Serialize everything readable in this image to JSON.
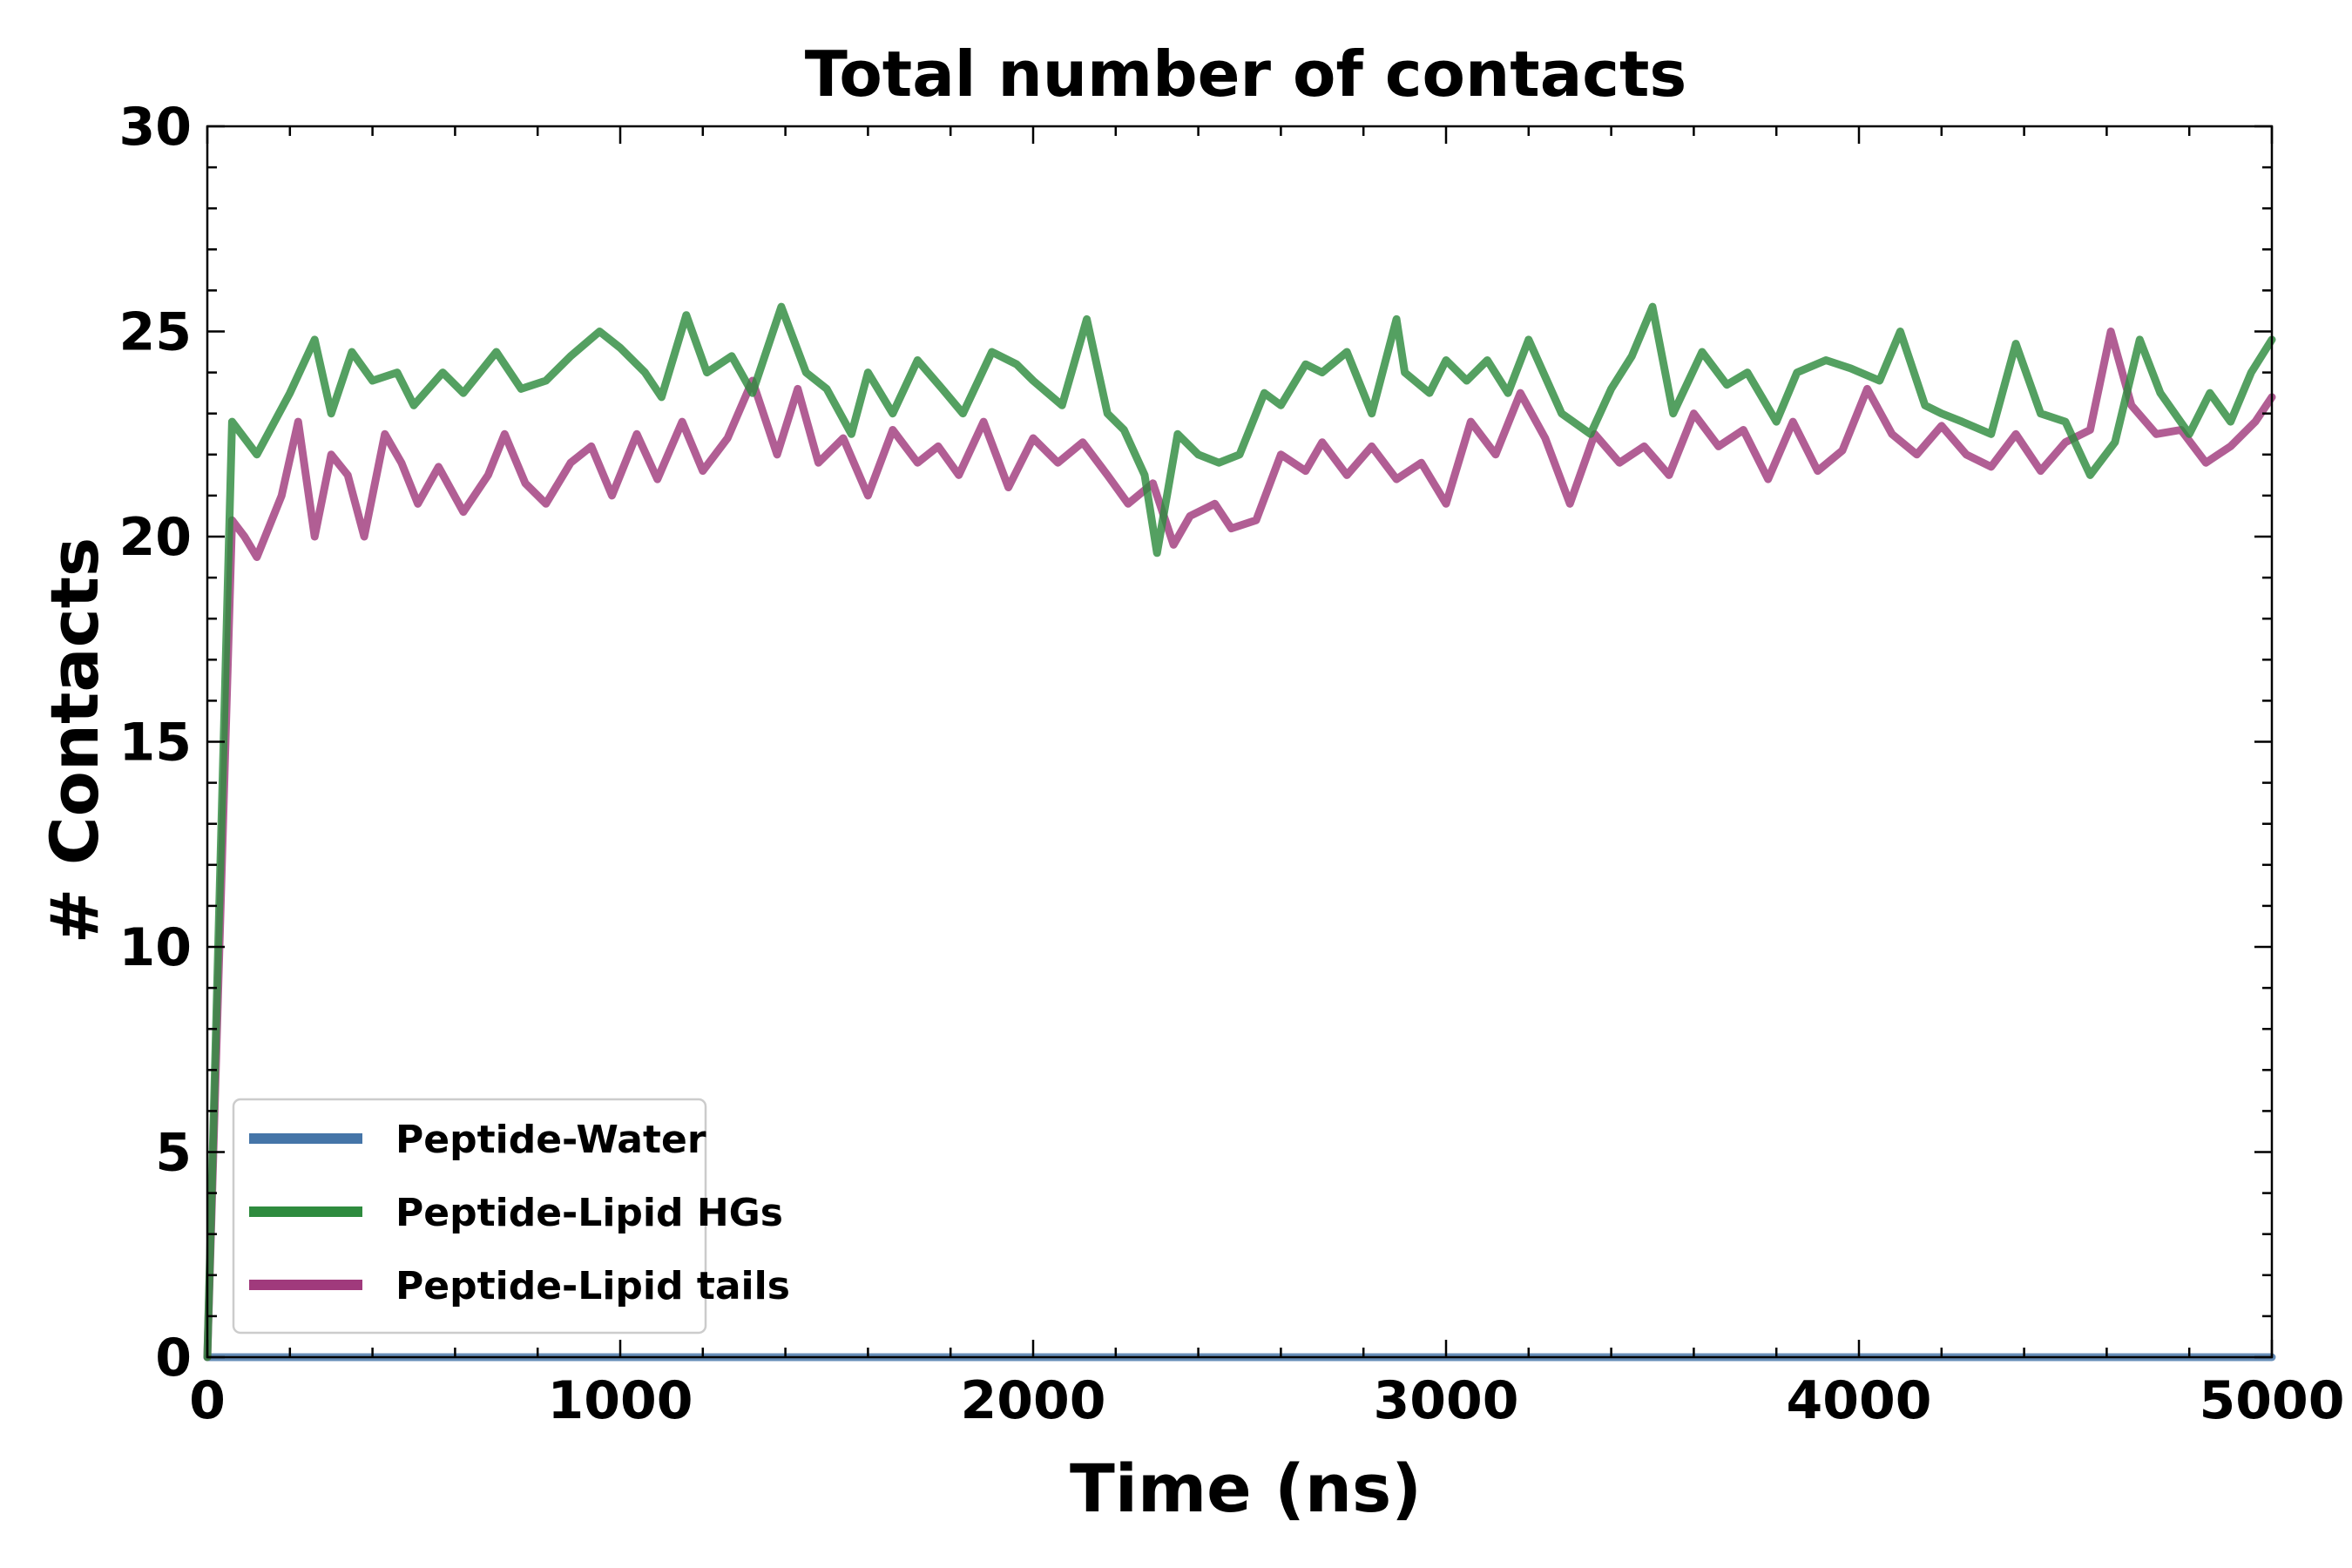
{
  "chart_data": {
    "type": "line",
    "title": "Total number of contacts",
    "xlabel": "Time (ns)",
    "ylabel": "# Contacts",
    "xlim": [
      0,
      5000
    ],
    "ylim": [
      0,
      30
    ],
    "xticks": [
      "0",
      "1000",
      "2000",
      "3000",
      "4000",
      "5000"
    ],
    "yticks": [
      "0",
      "5",
      "10",
      "15",
      "20",
      "25",
      "30"
    ],
    "grid": false,
    "legend_position": "lower-left",
    "series": [
      {
        "name": "Peptide-Water",
        "color": "#4575a8",
        "x": [
          0,
          5000
        ],
        "y": [
          0,
          0
        ]
      },
      {
        "name": "Peptide-Lipid HGs",
        "color": "#2e8b3e",
        "x": [
          0,
          60,
          120,
          200,
          260,
          300,
          350,
          400,
          460,
          500,
          570,
          620,
          700,
          760,
          820,
          880,
          950,
          1000,
          1060,
          1100,
          1160,
          1210,
          1270,
          1320,
          1390,
          1450,
          1500,
          1560,
          1600,
          1660,
          1720,
          1780,
          1830,
          1900,
          1960,
          2000,
          2070,
          2130,
          2180,
          2220,
          2270,
          2300,
          2350,
          2400,
          2450,
          2500,
          2560,
          2600,
          2660,
          2700,
          2760,
          2820,
          2880,
          2900,
          2960,
          3000,
          3050,
          3100,
          3150,
          3200,
          3280,
          3350,
          3400,
          3450,
          3500,
          3550,
          3620,
          3680,
          3730,
          3800,
          3850,
          3920,
          3980,
          4050,
          4100,
          4160,
          4200,
          4250,
          4320,
          4380,
          4440,
          4500,
          4560,
          4620,
          4680,
          4730,
          4800,
          4850,
          4900,
          4950,
          5000
        ],
        "y": [
          0,
          22.8,
          22,
          23.5,
          24.8,
          23,
          24.5,
          23.8,
          24,
          23.2,
          24,
          23.5,
          24.5,
          23.6,
          23.8,
          24.4,
          25,
          24.6,
          24,
          23.4,
          25.4,
          24,
          24.4,
          23.5,
          25.6,
          24,
          23.6,
          22.5,
          24,
          23,
          24.3,
          23.6,
          23,
          24.5,
          24.2,
          23.8,
          23.2,
          25.3,
          23,
          22.6,
          21.5,
          19.6,
          22.5,
          22,
          21.8,
          22,
          23.5,
          23.2,
          24.2,
          24,
          24.5,
          23,
          25.3,
          24,
          23.5,
          24.3,
          23.8,
          24.3,
          23.5,
          24.8,
          23,
          22.5,
          23.6,
          24.4,
          25.6,
          23,
          24.5,
          23.7,
          24,
          22.8,
          24,
          24.3,
          24.1,
          23.8,
          25,
          23.2,
          23,
          22.8,
          22.5,
          24.7,
          23,
          22.8,
          21.5,
          22.3,
          24.8,
          23.5,
          22.5,
          23.5,
          22.8,
          24,
          24.8
        ]
      },
      {
        "name": "Peptide-Lipid tails",
        "color": "#a03a7c",
        "x": [
          0,
          60,
          90,
          120,
          180,
          220,
          260,
          300,
          340,
          380,
          430,
          470,
          510,
          560,
          620,
          680,
          720,
          770,
          820,
          880,
          930,
          980,
          1040,
          1090,
          1150,
          1200,
          1260,
          1320,
          1380,
          1430,
          1480,
          1540,
          1600,
          1660,
          1720,
          1770,
          1820,
          1880,
          1940,
          2000,
          2060,
          2120,
          2180,
          2230,
          2290,
          2340,
          2380,
          2440,
          2480,
          2540,
          2600,
          2660,
          2700,
          2760,
          2820,
          2880,
          2940,
          3000,
          3060,
          3120,
          3180,
          3240,
          3300,
          3360,
          3420,
          3480,
          3540,
          3600,
          3660,
          3720,
          3780,
          3840,
          3900,
          3960,
          4020,
          4080,
          4140,
          4200,
          4260,
          4320,
          4380,
          4440,
          4500,
          4560,
          4610,
          4660,
          4720,
          4780,
          4840,
          4900,
          4960,
          5000
        ],
        "y": [
          0,
          20.4,
          20,
          19.5,
          21,
          22.8,
          20,
          22,
          21.5,
          20,
          22.5,
          21.8,
          20.8,
          21.7,
          20.6,
          21.5,
          22.5,
          21.3,
          20.8,
          21.8,
          22.2,
          21,
          22.5,
          21.4,
          22.8,
          21.6,
          22.4,
          23.8,
          22,
          23.6,
          21.8,
          22.4,
          21,
          22.6,
          21.8,
          22.2,
          21.5,
          22.8,
          21.2,
          22.4,
          21.8,
          22.3,
          21.5,
          20.8,
          21.3,
          19.8,
          20.5,
          20.8,
          20.2,
          20.4,
          22,
          21.6,
          22.3,
          21.5,
          22.2,
          21.4,
          21.8,
          20.8,
          22.8,
          22,
          23.5,
          22.4,
          20.8,
          22.5,
          21.8,
          22.2,
          21.5,
          23,
          22.2,
          22.6,
          21.4,
          22.8,
          21.6,
          22.1,
          23.6,
          22.5,
          22,
          22.7,
          22,
          21.7,
          22.5,
          21.6,
          22.3,
          22.6,
          25,
          23.2,
          22.5,
          22.6,
          21.8,
          22.2,
          22.8,
          23.4
        ]
      }
    ]
  }
}
